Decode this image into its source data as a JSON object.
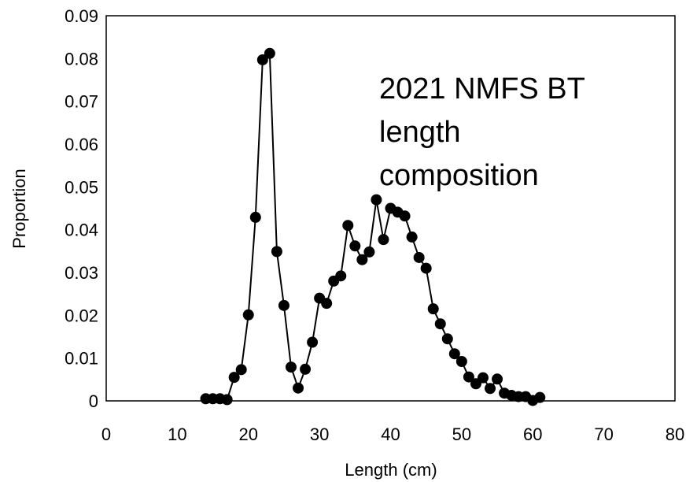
{
  "chart_data": {
    "type": "line",
    "title": "",
    "xlabel": "Length (cm)",
    "ylabel": "Proportion",
    "xlim": [
      0,
      80
    ],
    "ylim": [
      0,
      0.09
    ],
    "x_ticks": [
      "0",
      "10",
      "20",
      "30",
      "40",
      "50",
      "60",
      "70",
      "80"
    ],
    "y_ticks": [
      "0",
      "0.01",
      "0.02",
      "0.03",
      "0.04",
      "0.05",
      "0.06",
      "0.07",
      "0.08",
      "0.09"
    ],
    "grid": false,
    "legend": "none",
    "annotation": {
      "lines": [
        "2021 NMFS BT",
        "length",
        "composition"
      ]
    },
    "series": [
      {
        "color": "#000000",
        "marker": "circle",
        "x": [
          14,
          15,
          16,
          17,
          18,
          19,
          20,
          21,
          22,
          23,
          24,
          25,
          26,
          27,
          28,
          29,
          30,
          31,
          32,
          33,
          34,
          35,
          36,
          37,
          38,
          39,
          40,
          41,
          42,
          43,
          44,
          45,
          46,
          47,
          48,
          49,
          50,
          51,
          52,
          53,
          54,
          55,
          56,
          57,
          58,
          59,
          60,
          61
        ],
        "y": [
          0.0005,
          0.0005,
          0.0005,
          0.0003,
          0.0055,
          0.0073,
          0.0201,
          0.0429,
          0.0797,
          0.0812,
          0.0349,
          0.0223,
          0.0079,
          0.003,
          0.0074,
          0.0137,
          0.024,
          0.0228,
          0.028,
          0.0292,
          0.041,
          0.0362,
          0.033,
          0.0348,
          0.047,
          0.0377,
          0.045,
          0.0441,
          0.0432,
          0.0383,
          0.0335,
          0.031,
          0.0215,
          0.018,
          0.0145,
          0.011,
          0.0092,
          0.0056,
          0.004,
          0.0054,
          0.0029,
          0.0051,
          0.0018,
          0.0013,
          0.001,
          0.001,
          0.0001,
          0.0008
        ]
      }
    ]
  }
}
